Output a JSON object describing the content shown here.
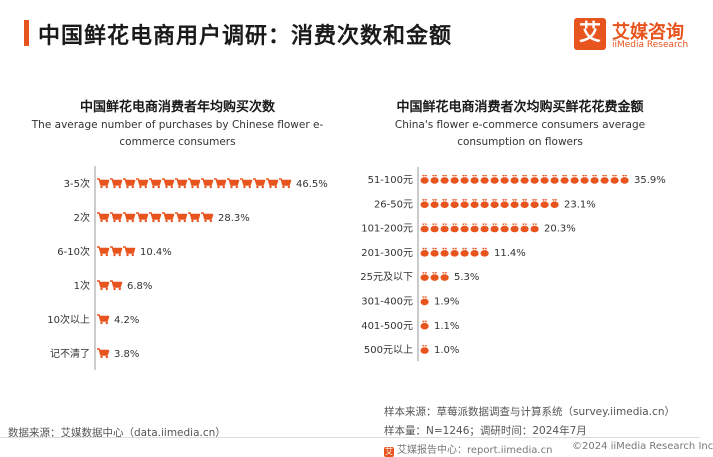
{
  "page": {
    "title": "中国鲜花电商用户调研：消费次数和金额",
    "logo_mark": "艾",
    "logo_cn": "艾媒咨询",
    "logo_en": "iiMedia Research",
    "brand_color": "#e8541e"
  },
  "chart_data": [
    {
      "type": "bar",
      "title": "中国鲜花电商消费者年均购买次数",
      "subtitle": "The average number of purchases by Chinese flower e-commerce consumers",
      "icon": "shopping-cart-icon",
      "unit": "%",
      "categories": [
        "3-5次",
        "2次",
        "6-10次",
        "1次",
        "10次以上",
        "记不清了"
      ],
      "values": [
        46.5,
        28.3,
        10.4,
        6.8,
        4.2,
        3.8
      ],
      "labels": [
        "46.5%",
        "28.3%",
        "10.4%",
        "6.8%",
        "4.2%",
        "3.8%"
      ]
    },
    {
      "type": "bar",
      "title": "中国鲜花电商消费者次均购买鲜花花费金额",
      "subtitle": "China's flower e-commerce consumers average consumption on flowers",
      "icon": "money-bag-icon",
      "unit": "%",
      "categories": [
        "51-100元",
        "26-50元",
        "101-200元",
        "201-300元",
        "25元及以下",
        "301-400元",
        "401-500元",
        "500元以上"
      ],
      "values": [
        35.9,
        23.1,
        20.3,
        11.4,
        5.3,
        1.9,
        1.1,
        1.0
      ],
      "labels": [
        "35.9%",
        "23.1%",
        "20.3%",
        "11.4%",
        "5.3%",
        "1.9%",
        "1.1%",
        "1.0%"
      ]
    }
  ],
  "sources": {
    "left": "数据来源：艾媒数据中心（data.iimedia.cn）",
    "right_1": "样本来源：草莓派数据调查与计算系统（survey.iimedia.cn）",
    "right_2": "样本量：N=1246；调研时间：2024年7月"
  },
  "footer": {
    "left": "艾媒报告中心：report.iimedia.cn",
    "right": "©2024  iiMedia Research Inc"
  }
}
